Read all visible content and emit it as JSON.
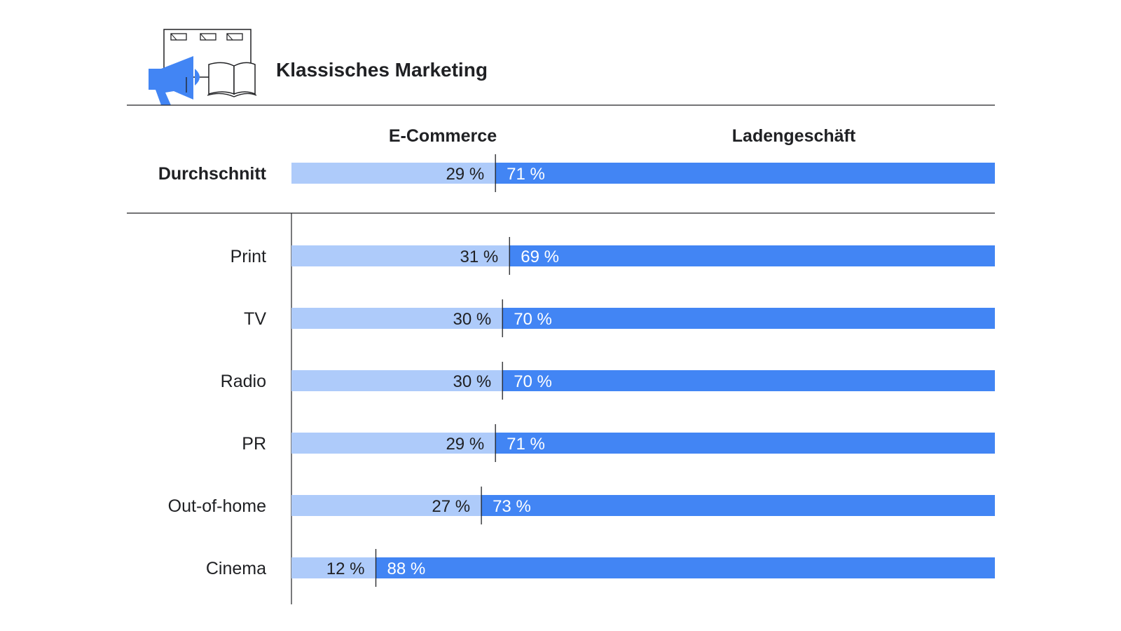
{
  "title": "Klassisches Marketing",
  "icon": "megaphone-billboard-book-icon",
  "colors": {
    "ecommerce": "#aecbfa",
    "store": "#4285f4",
    "icon_accent": "#4285f4",
    "rule": "#202124"
  },
  "chart_data": {
    "type": "bar",
    "stacked": true,
    "orientation": "horizontal",
    "series_headers": [
      "E-Commerce",
      "Ladengeschäft"
    ],
    "xlim": [
      0,
      100
    ],
    "average": {
      "label": "Durchschnitt",
      "ecommerce": 29,
      "store": 71,
      "ecommerce_label": "29 %",
      "store_label": "71 %"
    },
    "rows": [
      {
        "label": "Print",
        "ecommerce": 31,
        "store": 69,
        "ecommerce_label": "31 %",
        "store_label": "69 %"
      },
      {
        "label": "TV",
        "ecommerce": 30,
        "store": 70,
        "ecommerce_label": "30 %",
        "store_label": "70 %"
      },
      {
        "label": "Radio",
        "ecommerce": 30,
        "store": 70,
        "ecommerce_label": "30 %",
        "store_label": "70 %"
      },
      {
        "label": "PR",
        "ecommerce": 29,
        "store": 71,
        "ecommerce_label": "29 %",
        "store_label": "71 %"
      },
      {
        "label": "Out-of-home",
        "ecommerce": 27,
        "store": 73,
        "ecommerce_label": "27 %",
        "store_label": "73 %"
      },
      {
        "label": "Cinema",
        "ecommerce": 12,
        "store": 88,
        "ecommerce_label": "12 %",
        "store_label": "88 %"
      }
    ]
  }
}
